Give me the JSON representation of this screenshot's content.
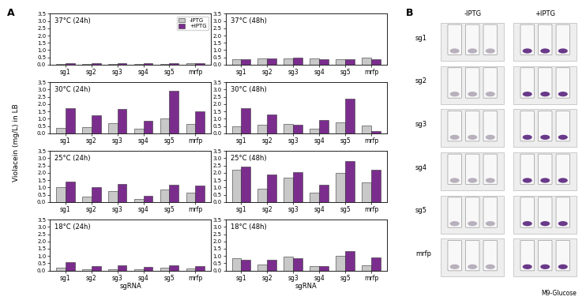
{
  "figure": {
    "panel_label": "A",
    "ylabel": "Violacein (mg/L) in LB"
  },
  "chart_data": [
    {
      "type": "bar",
      "title": "37°C (24h)",
      "categories": [
        "sg1",
        "sg2",
        "sg3",
        "sg4",
        "sg5",
        "mrfp"
      ],
      "series": [
        {
          "name": "-IPTG",
          "color": "#c8c8c8",
          "values": [
            0.05,
            0.05,
            0.05,
            0.05,
            0.05,
            0.08
          ]
        },
        {
          "name": "+IPTG",
          "color": "#7b2d8e",
          "values": [
            0.1,
            0.12,
            0.08,
            0.08,
            0.08,
            0.1
          ]
        }
      ],
      "ylim": [
        0,
        3.5
      ],
      "yticks": [
        {
          "value": 0,
          "label": "0.0"
        },
        {
          "value": 0.5,
          "label": "0.5"
        },
        {
          "value": 1,
          "label": "1.0"
        },
        {
          "value": 1.5,
          "label": "1.5"
        },
        {
          "value": 2,
          "label": "2.0"
        },
        {
          "value": 2.5,
          "label": "2.5"
        },
        {
          "value": 3,
          "label": "3.0"
        },
        {
          "value": 3.5,
          "label": "3.5"
        }
      ],
      "legend": "upper right"
    },
    {
      "type": "bar",
      "title": "37°C (48h)",
      "categories": [
        "sg1",
        "sg2",
        "sg3",
        "sg4",
        "sg5",
        "mrfp"
      ],
      "series": [
        {
          "name": "-IPTG",
          "color": "#c8c8c8",
          "values": [
            0.4,
            0.45,
            0.45,
            0.45,
            0.35,
            0.5
          ]
        },
        {
          "name": "+IPTG",
          "color": "#7b2d8e",
          "values": [
            0.35,
            0.45,
            0.5,
            0.4,
            0.4,
            0.4
          ]
        }
      ],
      "ylim": [
        0,
        3.5
      ],
      "yticks": [
        {
          "value": 0,
          "label": "0.0"
        },
        {
          "value": 0.5,
          "label": "0.5"
        },
        {
          "value": 1,
          "label": "1.0"
        },
        {
          "value": 1.5,
          "label": "1.5"
        },
        {
          "value": 2,
          "label": "2.0"
        },
        {
          "value": 2.5,
          "label": "2.5"
        },
        {
          "value": 3,
          "label": "3.0"
        },
        {
          "value": 3.5,
          "label": "3.5"
        }
      ]
    },
    {
      "type": "bar",
      "title": "30°C (24h)",
      "categories": [
        "sg1",
        "sg2",
        "sg3",
        "sg4",
        "sg5",
        "mrfp"
      ],
      "series": [
        {
          "name": "-IPTG",
          "color": "#c8c8c8",
          "values": [
            0.35,
            0.4,
            0.7,
            0.3,
            1.0,
            0.65
          ]
        },
        {
          "name": "+IPTG",
          "color": "#7b2d8e",
          "values": [
            1.7,
            1.25,
            1.65,
            0.85,
            2.9,
            1.5
          ]
        }
      ],
      "ylim": [
        0,
        3.5
      ],
      "yticks": [
        {
          "value": 0,
          "label": "0.0"
        },
        {
          "value": 0.5,
          "label": "0.5"
        },
        {
          "value": 1,
          "label": "1.0"
        },
        {
          "value": 1.5,
          "label": "1.5"
        },
        {
          "value": 2,
          "label": "2.0"
        },
        {
          "value": 2.5,
          "label": "2.5"
        },
        {
          "value": 3,
          "label": "3.0"
        },
        {
          "value": 3.5,
          "label": "3.5"
        }
      ]
    },
    {
      "type": "bar",
      "title": "30°C (48h)",
      "categories": [
        "sg1",
        "sg2",
        "sg3",
        "sg4",
        "sg5",
        "mrfp"
      ],
      "series": [
        {
          "name": "-IPTG",
          "color": "#c8c8c8",
          "values": [
            0.5,
            0.6,
            0.65,
            0.3,
            0.75,
            0.55
          ]
        },
        {
          "name": "+IPTG",
          "color": "#7b2d8e",
          "values": [
            1.75,
            1.3,
            0.6,
            0.9,
            2.4,
            0.15
          ]
        }
      ],
      "ylim": [
        0,
        3.5
      ],
      "yticks": [
        {
          "value": 0,
          "label": "0.0"
        },
        {
          "value": 0.5,
          "label": "0.5"
        },
        {
          "value": 1,
          "label": "1.0"
        },
        {
          "value": 1.5,
          "label": "1.5"
        },
        {
          "value": 2,
          "label": "2.0"
        },
        {
          "value": 2.5,
          "label": "2.5"
        },
        {
          "value": 3,
          "label": "3.0"
        },
        {
          "value": 3.5,
          "label": "3.5"
        }
      ]
    },
    {
      "type": "bar",
      "title": "25°C (24h)",
      "categories": [
        "sg1",
        "sg2",
        "sg3",
        "sg4",
        "sg5",
        "mrfp"
      ],
      "series": [
        {
          "name": "-IPTG",
          "color": "#c8c8c8",
          "values": [
            1.0,
            0.35,
            0.75,
            0.2,
            0.85,
            0.65
          ]
        },
        {
          "name": "+IPTG",
          "color": "#7b2d8e",
          "values": [
            1.4,
            1.0,
            1.25,
            0.4,
            1.2,
            1.1
          ]
        }
      ],
      "ylim": [
        0,
        3.5
      ],
      "yticks": [
        {
          "value": 0,
          "label": "0.0"
        },
        {
          "value": 0.5,
          "label": "0.5"
        },
        {
          "value": 1,
          "label": "1.0"
        },
        {
          "value": 1.5,
          "label": "1.5"
        },
        {
          "value": 2,
          "label": "2.0"
        },
        {
          "value": 2.5,
          "label": "2.5"
        },
        {
          "value": 3,
          "label": "3.0"
        },
        {
          "value": 3.5,
          "label": "3.5"
        }
      ]
    },
    {
      "type": "bar",
      "title": "25°C (48h)",
      "categories": [
        "sg1",
        "sg2",
        "sg3",
        "sg4",
        "sg5",
        "mrfp"
      ],
      "series": [
        {
          "name": "-IPTG",
          "color": "#c8c8c8",
          "values": [
            2.2,
            0.9,
            1.65,
            0.65,
            2.0,
            1.35
          ]
        },
        {
          "name": "+IPTG",
          "color": "#7b2d8e",
          "values": [
            2.45,
            1.9,
            2.05,
            1.2,
            2.8,
            2.2
          ]
        }
      ],
      "ylim": [
        0,
        3.5
      ],
      "yticks": [
        {
          "value": 0,
          "label": "0.0"
        },
        {
          "value": 0.5,
          "label": "0.5"
        },
        {
          "value": 1,
          "label": "1.0"
        },
        {
          "value": 1.5,
          "label": "1.5"
        },
        {
          "value": 2,
          "label": "2.0"
        },
        {
          "value": 2.5,
          "label": "2.5"
        },
        {
          "value": 3,
          "label": "3.0"
        },
        {
          "value": 3.5,
          "label": "3.5"
        }
      ]
    },
    {
      "type": "bar",
      "title": "18°C (24h)",
      "categories": [
        "sg1",
        "sg2",
        "sg3",
        "sg4",
        "sg5",
        "mrfp"
      ],
      "series": [
        {
          "name": "-IPTG",
          "color": "#c8c8c8",
          "values": [
            0.2,
            0.1,
            0.1,
            0.1,
            0.2,
            0.15
          ]
        },
        {
          "name": "+IPTG",
          "color": "#7b2d8e",
          "values": [
            0.6,
            0.3,
            0.35,
            0.25,
            0.35,
            0.3
          ]
        }
      ],
      "ylim": [
        0,
        3.5
      ],
      "yticks": [
        {
          "value": 0,
          "label": "0.0"
        },
        {
          "value": 0.5,
          "label": "0.5"
        },
        {
          "value": 1,
          "label": "1.0"
        },
        {
          "value": 1.5,
          "label": "1.5"
        },
        {
          "value": 2,
          "label": "2.0"
        },
        {
          "value": 2.5,
          "label": "2.5"
        },
        {
          "value": 3,
          "label": "3.0"
        },
        {
          "value": 3.5,
          "label": "3.5"
        }
      ],
      "xlabel": "sgRNA"
    },
    {
      "type": "bar",
      "title": "18°C (48h)",
      "categories": [
        "sg1",
        "sg2",
        "sg3",
        "sg4",
        "sg5",
        "mrfp"
      ],
      "series": [
        {
          "name": "-IPTG",
          "color": "#c8c8c8",
          "values": [
            0.85,
            0.4,
            0.95,
            0.3,
            1.0,
            0.35
          ]
        },
        {
          "name": "+IPTG",
          "color": "#7b2d8e",
          "values": [
            0.75,
            0.75,
            0.85,
            0.3,
            1.35,
            0.9
          ]
        }
      ],
      "ylim": [
        0,
        3.5
      ],
      "yticks": [
        {
          "value": 0,
          "label": "0.0"
        },
        {
          "value": 0.5,
          "label": "0.5"
        },
        {
          "value": 1,
          "label": "1.0"
        },
        {
          "value": 1.5,
          "label": "1.5"
        },
        {
          "value": 2,
          "label": "2.0"
        },
        {
          "value": 2.5,
          "label": "2.5"
        },
        {
          "value": 3,
          "label": "3.0"
        },
        {
          "value": 3.5,
          "label": "3.5"
        }
      ],
      "xlabel": "sgRNA"
    }
  ],
  "panel_b": {
    "label": "B",
    "columns": [
      "-IPTG",
      "+IPTG"
    ],
    "rows": [
      "sg1",
      "sg2",
      "sg3",
      "sg4",
      "sg5",
      "mrfp"
    ],
    "medium": "M9-Glucose"
  }
}
